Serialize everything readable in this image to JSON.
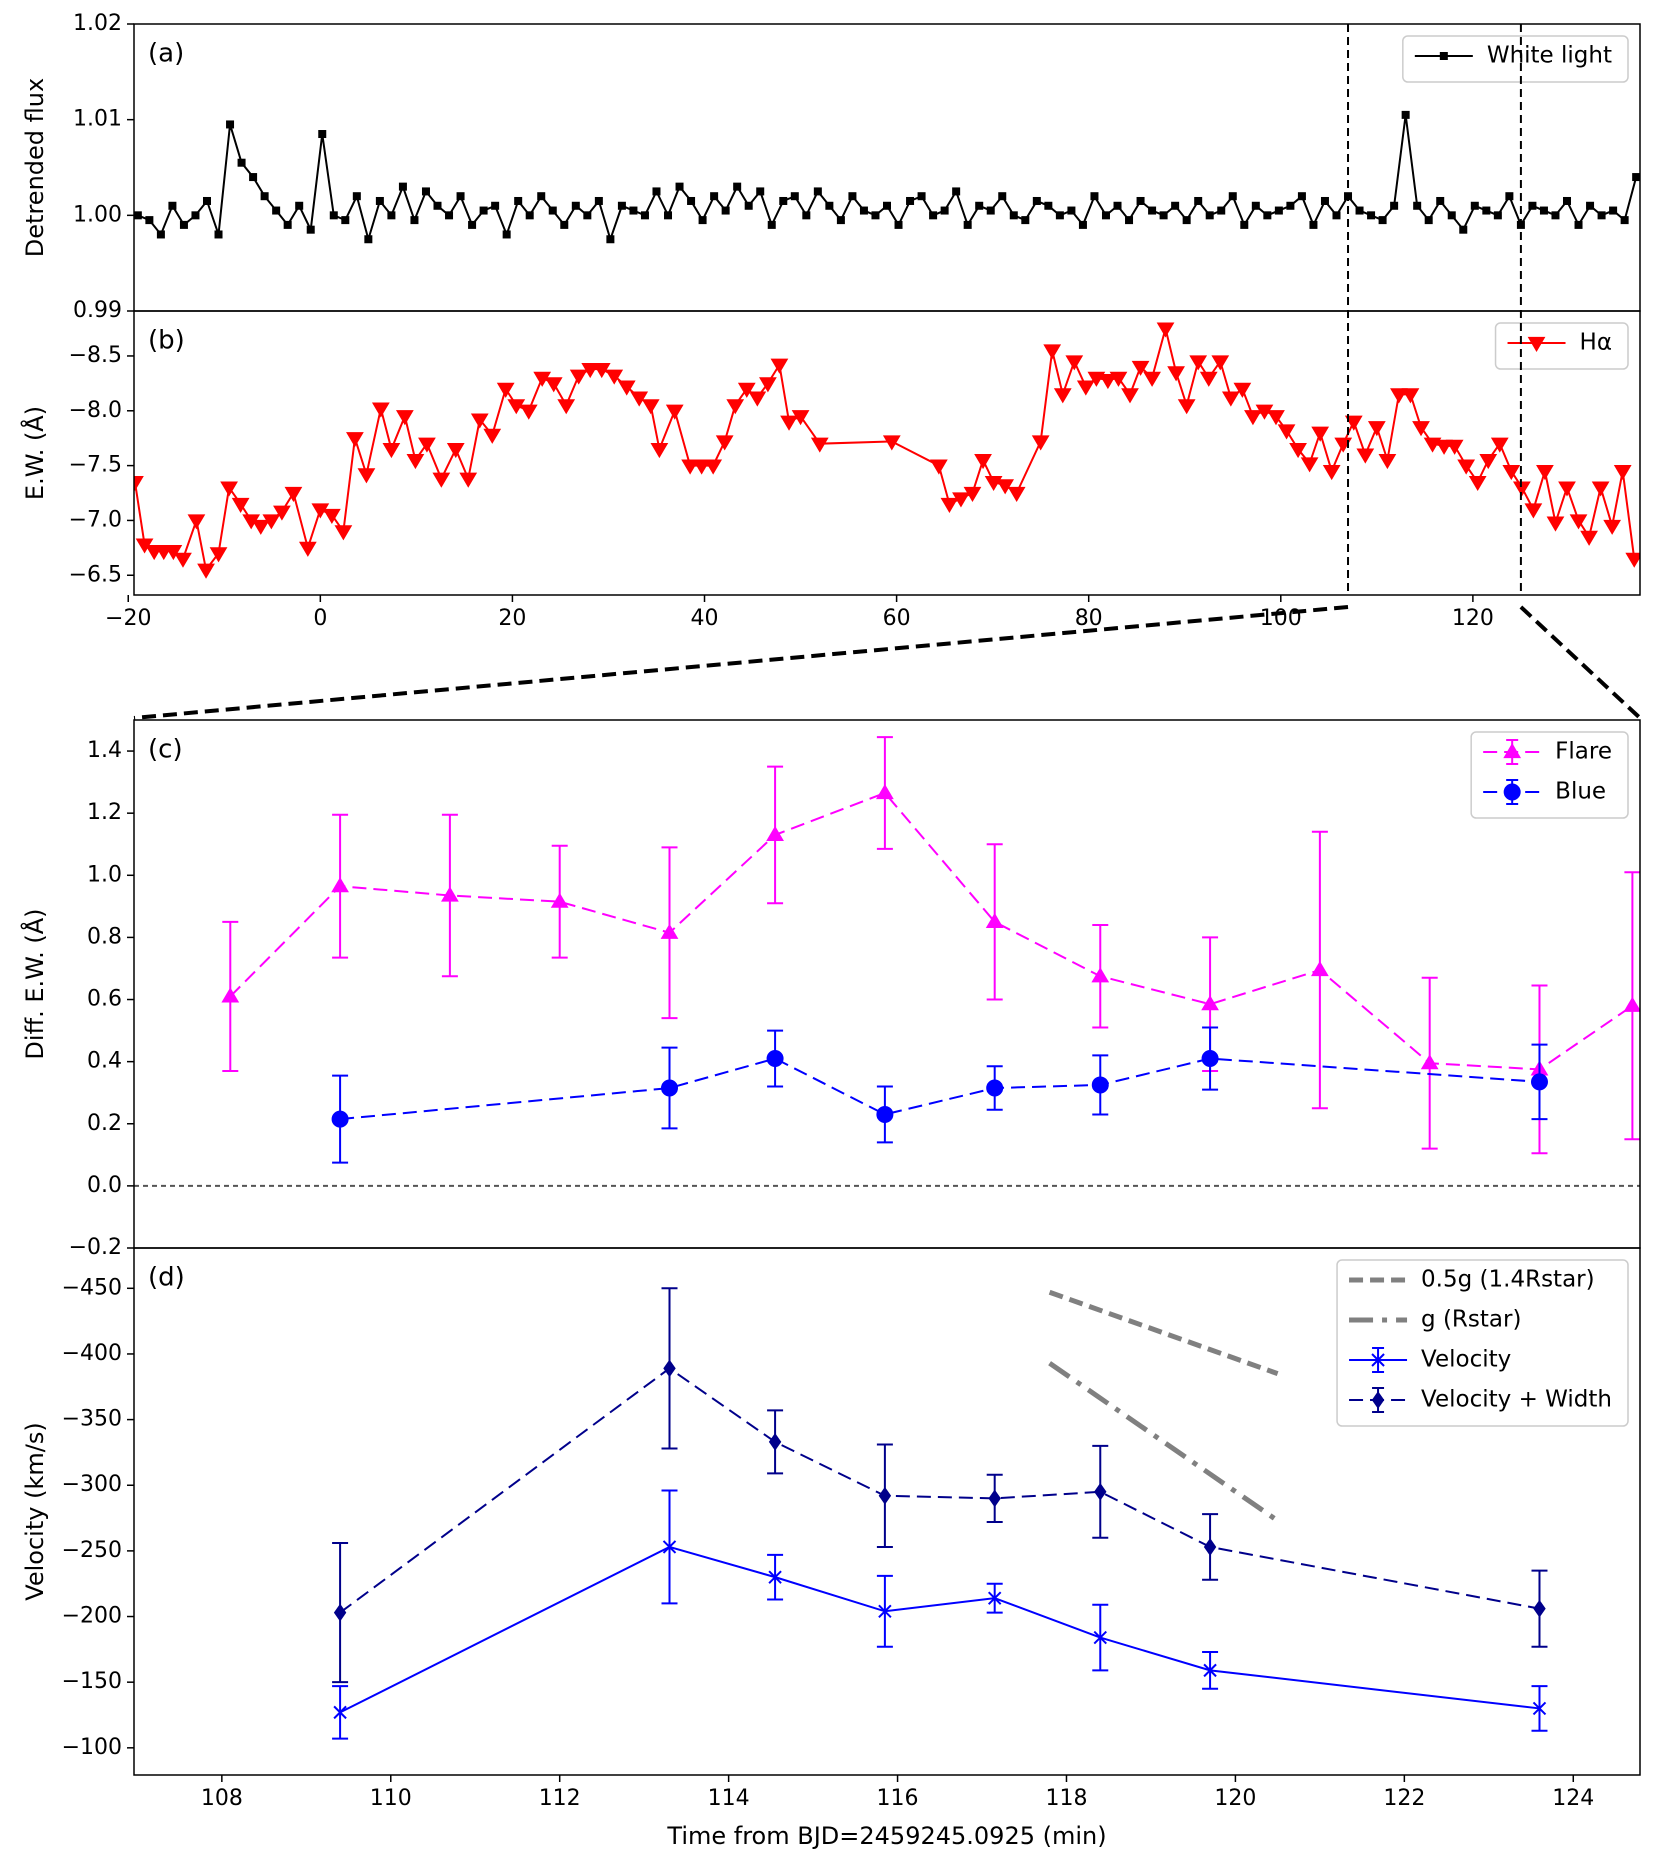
{
  "chart_data": [
    {
      "type": "line",
      "annotation": "(a)",
      "ylabel": "Detrended flux",
      "legend": "upper right",
      "xlim": [
        -19.4,
        137.4
      ],
      "ylim": [
        0.99,
        1.02
      ],
      "yticks": [
        0.99,
        {
          "value": 1,
          "label": "1.00"
        },
        1.01,
        1.02
      ],
      "series": [
        {
          "name": "White light",
          "color": "#000000",
          "marker": "s",
          "dash": "solid",
          "linewidth": 2,
          "x": [
            -19,
            -17.8,
            -16.6,
            -15.4,
            -14.2,
            -13,
            -11.8,
            -10.6,
            -9.4,
            -8.2,
            -7,
            -5.8,
            -4.6,
            -3.4,
            -2.2,
            -1,
            0.2,
            1.4,
            2.6,
            3.8,
            5,
            6.2,
            7.4,
            8.6,
            9.8,
            11,
            12.2,
            13.4,
            14.6,
            15.8,
            17,
            18.2,
            19.4,
            20.6,
            21.8,
            23,
            24.2,
            25.4,
            26.6,
            27.8,
            29,
            30.2,
            31.4,
            32.6,
            33.8,
            35,
            36.2,
            37.4,
            38.6,
            39.8,
            41,
            42.2,
            43.4,
            44.6,
            45.8,
            47,
            48.2,
            49.4,
            50.6,
            51.8,
            53,
            54.2,
            55.4,
            56.6,
            57.8,
            59,
            60.2,
            61.4,
            62.6,
            63.8,
            65,
            66.2,
            67.4,
            68.6,
            69.8,
            71,
            72.2,
            73.4,
            74.6,
            75.8,
            77,
            78.2,
            79.4,
            80.6,
            81.8,
            83,
            84.2,
            85.4,
            86.6,
            87.8,
            89,
            90.2,
            91.4,
            92.6,
            93.8,
            95,
            96.2,
            97.4,
            98.6,
            99.8,
            101,
            102.2,
            103.4,
            104.6,
            105.8,
            107,
            108.2,
            109.4,
            110.6,
            111.8,
            113,
            114.2,
            115.4,
            116.6,
            117.8,
            119,
            120.2,
            121.4,
            122.6,
            123.8,
            125,
            126.2,
            127.4,
            128.6,
            129.8,
            131,
            132.2,
            133.4,
            134.6,
            135.8,
            137
          ],
          "values": [
            1.0,
            0.9995,
            0.998,
            1.001,
            0.999,
            1.0,
            1.0015,
            0.998,
            1.0095,
            1.0055,
            1.004,
            1.002,
            1.0005,
            0.999,
            1.001,
            0.9985,
            1.0085,
            1.0,
            0.9995,
            1.002,
            0.9975,
            1.0015,
            1.0,
            1.003,
            0.9995,
            1.0025,
            1.001,
            1.0,
            1.002,
            0.999,
            1.0005,
            1.001,
            0.998,
            1.0015,
            1.0,
            1.002,
            1.0005,
            0.999,
            1.001,
            1.0,
            1.0015,
            0.9975,
            1.001,
            1.0005,
            1.0,
            1.0025,
            1.0,
            1.003,
            1.0015,
            0.9995,
            1.002,
            1.0005,
            1.003,
            1.001,
            1.0025,
            0.999,
            1.0015,
            1.002,
            1.0,
            1.0025,
            1.001,
            0.9995,
            1.002,
            1.0005,
            1.0,
            1.001,
            0.999,
            1.0015,
            1.002,
            1.0,
            1.0005,
            1.0025,
            0.999,
            1.001,
            1.0005,
            1.002,
            1.0,
            0.9995,
            1.0015,
            1.001,
            1.0,
            1.0005,
            0.999,
            1.002,
            1.0,
            1.001,
            0.9995,
            1.0015,
            1.0005,
            1.0,
            1.001,
            0.9995,
            1.0015,
            1.0,
            1.0005,
            1.002,
            0.999,
            1.001,
            1.0,
            1.0005,
            1.001,
            1.002,
            0.999,
            1.0015,
            1.0,
            1.002,
            1.0005,
            1.0,
            0.9995,
            1.001,
            1.0105,
            1.001,
            0.9995,
            1.0015,
            1.0,
            0.9985,
            1.001,
            1.0005,
            1.0,
            1.002,
            0.999,
            1.001,
            1.0005,
            1.0,
            1.0015,
            0.999,
            1.001,
            1.0,
            1.0005,
            0.9995,
            1.004
          ]
        }
      ]
    },
    {
      "type": "line",
      "annotation": "(b)",
      "ylabel": "E.W. (Å)",
      "legend": "upper right",
      "xlim": [
        -19.4,
        137.4
      ],
      "ylim": [
        -6.32,
        -8.91
      ],
      "zoom_range": [
        107,
        125
      ],
      "xticks": [
        {
          "value": -20,
          "label": "−20"
        },
        0,
        20,
        40,
        60,
        80,
        100,
        120
      ],
      "yticks": [
        {
          "value": -8.5,
          "label": "−8.5"
        },
        {
          "value": -8,
          "label": "−8.0"
        },
        {
          "value": -7.5,
          "label": "−7.5"
        },
        {
          "value": -7,
          "label": "−7.0"
        },
        {
          "value": -6.5,
          "label": "−6.5"
        }
      ],
      "series": [
        {
          "name": "Hα",
          "color": "#ff0000",
          "marker": "v",
          "dash": "solid",
          "linewidth": 2,
          "x": [
            -19.3,
            -18.3,
            -17.3,
            -16.3,
            -15.3,
            -14.3,
            -12.9,
            -11.9,
            -10.6,
            -9.5,
            -8.3,
            -7.2,
            -6.2,
            -5.1,
            -4,
            -2.8,
            -1.3,
            0,
            1.2,
            2.4,
            3.6,
            4.8,
            6.3,
            7.4,
            8.8,
            9.9,
            11.1,
            12.6,
            14.1,
            15.4,
            16.6,
            17.9,
            19.3,
            20.4,
            21.7,
            23.1,
            24.3,
            25.6,
            26.9,
            28.1,
            29.3,
            30.6,
            31.9,
            33.2,
            34.4,
            35.3,
            36.9,
            38.5,
            39.7,
            40.9,
            42.1,
            43.2,
            44.4,
            45.5,
            46.6,
            47.8,
            48.8,
            50,
            52,
            59.5,
            64.4,
            65.5,
            66.7,
            67.9,
            69,
            70.1,
            71.3,
            72.5,
            75,
            76.2,
            77.3,
            78.5,
            79.7,
            80.8,
            82,
            83.1,
            84.3,
            85.4,
            86.6,
            88,
            89.1,
            90.2,
            91.4,
            92.5,
            93.7,
            94.8,
            96,
            97.1,
            98.3,
            99.5,
            100.6,
            101.8,
            103,
            104.1,
            105.3,
            106.5,
            107.6,
            108.8,
            110,
            111.1,
            112.3,
            113.5,
            114.6,
            115.8,
            117,
            118.1,
            119.3,
            120.5,
            121.6,
            122.8,
            124,
            125.1,
            126.3,
            127.5,
            128.6,
            129.8,
            131,
            132.1,
            133.3,
            134.5,
            135.6,
            136.8
          ],
          "values": [
            -7.35,
            -6.78,
            -6.72,
            -6.72,
            -6.72,
            -6.65,
            -7.0,
            -6.55,
            -6.7,
            -7.3,
            -7.15,
            -7.0,
            -6.95,
            -7.0,
            -7.08,
            -7.25,
            -6.75,
            -7.1,
            -7.05,
            -6.9,
            -7.75,
            -7.42,
            -8.02,
            -7.65,
            -7.95,
            -7.55,
            -7.7,
            -7.38,
            -7.65,
            -7.38,
            -7.92,
            -7.78,
            -8.2,
            -8.05,
            -8.0,
            -8.3,
            -8.25,
            -8.05,
            -8.32,
            -8.38,
            -8.38,
            -8.32,
            -8.22,
            -8.12,
            -8.05,
            -7.65,
            -8.0,
            -7.5,
            -7.5,
            -7.5,
            -7.72,
            -8.05,
            -8.2,
            -8.12,
            -8.25,
            -8.42,
            -7.9,
            -7.95,
            -7.7,
            -7.72,
            -7.5,
            -7.15,
            -7.2,
            -7.25,
            -7.55,
            -7.35,
            -7.32,
            -7.25,
            -7.72,
            -8.55,
            -8.15,
            -8.45,
            -8.22,
            -8.3,
            -8.28,
            -8.3,
            -8.15,
            -8.4,
            -8.3,
            -8.75,
            -8.35,
            -8.05,
            -8.45,
            -8.3,
            -8.45,
            -8.12,
            -8.2,
            -7.95,
            -8.0,
            -7.95,
            -7.82,
            -7.65,
            -7.52,
            -7.8,
            -7.45,
            -7.7,
            -7.9,
            -7.6,
            -7.85,
            -7.55,
            -8.15,
            -8.15,
            -7.85,
            -7.7,
            -7.68,
            -7.68,
            -7.5,
            -7.35,
            -7.55,
            -7.7,
            -7.45,
            -7.3,
            -7.1,
            -7.45,
            -6.98,
            -7.3,
            -7.0,
            -6.85,
            -7.3,
            -6.95,
            -7.45,
            -6.65
          ]
        }
      ]
    },
    {
      "type": "line",
      "annotation": "(c)",
      "ylabel": "Diff. E.W. (Å)",
      "legend": "upper right",
      "hline": 0,
      "xlim": [
        106.96,
        124.79
      ],
      "ylim": [
        -0.2,
        1.5
      ],
      "yticks": [
        {
          "value": -0.2,
          "label": "−0.2"
        },
        {
          "value": 0,
          "label": "0.0"
        },
        0.2,
        0.4,
        0.6,
        0.8,
        {
          "value": 1,
          "label": "1.0"
        },
        1.2,
        1.4
      ],
      "series": [
        {
          "name": "Flare",
          "color": "#ff00ff",
          "marker": "^",
          "dash": "dashed",
          "linewidth": 2,
          "x": [
            108.1,
            109.4,
            110.7,
            112.0,
            113.3,
            114.55,
            115.85,
            117.15,
            118.4,
            119.7,
            121.0,
            122.3,
            123.6,
            124.7
          ],
          "values": [
            0.61,
            0.965,
            0.935,
            0.915,
            0.815,
            1.13,
            1.265,
            0.85,
            0.675,
            0.585,
            0.695,
            0.395,
            0.375,
            0.58
          ],
          "errors": [
            0.24,
            0.23,
            0.26,
            0.18,
            0.275,
            0.22,
            0.18,
            0.25,
            0.165,
            0.215,
            0.445,
            0.275,
            0.27,
            0.43
          ]
        },
        {
          "name": "Blue",
          "color": "#0000ff",
          "marker": "o",
          "dash": "dashed",
          "linewidth": 2,
          "x": [
            109.4,
            113.3,
            114.55,
            115.85,
            117.15,
            118.4,
            119.7,
            123.6
          ],
          "values": [
            0.215,
            0.315,
            0.41,
            0.23,
            0.315,
            0.325,
            0.41,
            0.335
          ],
          "errors": [
            0.14,
            0.13,
            0.09,
            0.09,
            0.07,
            0.095,
            0.1,
            0.12
          ]
        }
      ]
    },
    {
      "type": "line",
      "annotation": "(d)",
      "ylabel": "Velocity (km/s)",
      "xlabel": "Time from BJD=2459245.0925 (min)",
      "legend": "upper right",
      "xlim": [
        106.96,
        124.79
      ],
      "ylim": [
        -79.3,
        -480.7
      ],
      "xticks": [
        108,
        110,
        112,
        114,
        116,
        118,
        120,
        122,
        124
      ],
      "yticks": [
        {
          "value": -450,
          "label": "−450"
        },
        {
          "value": -400,
          "label": "−400"
        },
        {
          "value": -350,
          "label": "−350"
        },
        {
          "value": -300,
          "label": "−300"
        },
        {
          "value": -250,
          "label": "−250"
        },
        {
          "value": -200,
          "label": "−200"
        },
        {
          "value": -150,
          "label": "−150"
        },
        {
          "value": -100,
          "label": "−100"
        }
      ],
      "series": [
        {
          "name": "0.5g (1.4Rstar)",
          "color": "#808080",
          "dash": "dashed",
          "linewidth": 5,
          "x": [
            117.8,
            120.5
          ],
          "values": [
            -447,
            -385
          ]
        },
        {
          "name": "g (Rstar)",
          "color": "#808080",
          "dash": "dashdot",
          "linewidth": 5,
          "x": [
            117.8,
            120.5
          ],
          "values": [
            -393,
            -273
          ]
        },
        {
          "name": "Velocity",
          "color": "#0000ff",
          "marker": "x",
          "dash": "solid",
          "linewidth": 2,
          "x": [
            109.4,
            113.3,
            114.55,
            115.85,
            117.15,
            118.4,
            119.7,
            123.6
          ],
          "values": [
            -127,
            -253,
            -230,
            -204,
            -214,
            -184,
            -159,
            -130
          ],
          "errors": [
            20,
            43,
            17,
            27,
            11,
            25,
            14,
            17
          ]
        },
        {
          "name": "Velocity + Width",
          "color": "#00008b",
          "marker": "D",
          "dash": "dashed",
          "linewidth": 2,
          "x": [
            109.4,
            113.3,
            114.55,
            115.85,
            117.15,
            118.4,
            119.7,
            123.6
          ],
          "values": [
            -203,
            -389,
            -333,
            -292,
            -290,
            -295,
            -253,
            -206
          ],
          "errors": [
            53,
            61,
            24,
            39,
            18,
            35,
            25,
            29
          ]
        }
      ]
    }
  ]
}
